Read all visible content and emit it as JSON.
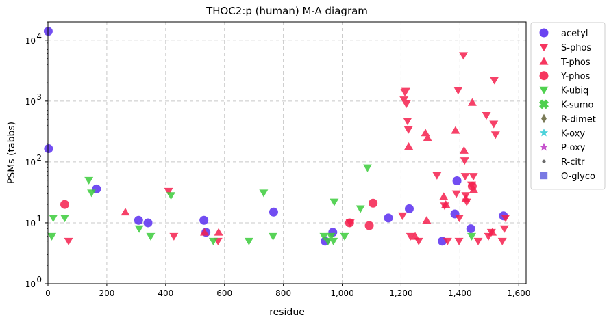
{
  "chart_data": {
    "type": "scatter",
    "title": "THOC2:p (human) M-A diagram",
    "xlabel": "residue",
    "ylabel": "PSMs (tabbs)",
    "x_scale": "linear",
    "y_scale": "log",
    "xlim": [
      0,
      1625
    ],
    "ylim": [
      1,
      20000
    ],
    "x_ticks": [
      {
        "value": 0,
        "label": "0"
      },
      {
        "value": 200,
        "label": "200"
      },
      {
        "value": 400,
        "label": "400"
      },
      {
        "value": 600,
        "label": "600"
      },
      {
        "value": 800,
        "label": "800"
      },
      {
        "value": 1000,
        "label": "1,000"
      },
      {
        "value": 1200,
        "label": "1,200"
      },
      {
        "value": 1400,
        "label": "1,400"
      },
      {
        "value": 1600,
        "label": "1,600"
      }
    ],
    "y_ticks": [
      {
        "value": 1,
        "base": "10",
        "exp": "0"
      },
      {
        "value": 10,
        "base": "10",
        "exp": "1"
      },
      {
        "value": 100,
        "base": "10",
        "exp": "2"
      },
      {
        "value": 1000,
        "base": "10",
        "exp": "3"
      },
      {
        "value": 10000,
        "base": "10",
        "exp": "4"
      }
    ],
    "grid": true,
    "legend_position": "outside-right",
    "series": [
      {
        "name": "acetyl",
        "marker": "circle",
        "color": "#5a2ff0",
        "points": [
          [
            1,
            14000
          ],
          [
            2,
            165
          ],
          [
            165,
            36
          ],
          [
            308,
            11
          ],
          [
            340,
            10
          ],
          [
            530,
            11
          ],
          [
            537,
            7
          ],
          [
            767,
            15
          ],
          [
            942,
            5
          ],
          [
            968,
            7
          ],
          [
            1157,
            12
          ],
          [
            1228,
            17
          ],
          [
            1340,
            5
          ],
          [
            1383,
            14
          ],
          [
            1390,
            49
          ],
          [
            1437,
            8
          ],
          [
            1548,
            13
          ]
        ]
      },
      {
        "name": "S-phos",
        "marker": "triangle-down",
        "color": "#f5204e",
        "points": [
          [
            70,
            5
          ],
          [
            410,
            33
          ],
          [
            428,
            6
          ],
          [
            578,
            5
          ],
          [
            1027,
            10
          ],
          [
            1205,
            13
          ],
          [
            1210,
            1050
          ],
          [
            1213,
            1400
          ],
          [
            1216,
            1450
          ],
          [
            1218,
            900
          ],
          [
            1222,
            470
          ],
          [
            1225,
            340
          ],
          [
            1232,
            6
          ],
          [
            1260,
            5
          ],
          [
            1322,
            60
          ],
          [
            1348,
            19
          ],
          [
            1358,
            5
          ],
          [
            1388,
            30
          ],
          [
            1394,
            1500
          ],
          [
            1397,
            5
          ],
          [
            1398,
            12
          ],
          [
            1412,
            5600
          ],
          [
            1416,
            105
          ],
          [
            1418,
            58
          ],
          [
            1420,
            28
          ],
          [
            1423,
            22
          ],
          [
            1440,
            42
          ],
          [
            1446,
            58
          ],
          [
            1462,
            5
          ],
          [
            1490,
            580
          ],
          [
            1497,
            6
          ],
          [
            1507,
            7
          ],
          [
            1515,
            420
          ],
          [
            1517,
            2200
          ],
          [
            1521,
            280
          ],
          [
            1544,
            5
          ],
          [
            1551,
            8
          ],
          [
            1555,
            12
          ]
        ]
      },
      {
        "name": "T-phos",
        "marker": "triangle-up",
        "color": "#f5204e",
        "points": [
          [
            263,
            15
          ],
          [
            532,
            7
          ],
          [
            580,
            7
          ],
          [
            1226,
            180
          ],
          [
            1248,
            6
          ],
          [
            1283,
            300
          ],
          [
            1287,
            11
          ],
          [
            1290,
            250
          ],
          [
            1345,
            27
          ],
          [
            1352,
            20
          ],
          [
            1385,
            330
          ],
          [
            1414,
            155
          ],
          [
            1420,
            25
          ],
          [
            1442,
            950
          ],
          [
            1447,
            35
          ],
          [
            1510,
            7
          ]
        ]
      },
      {
        "name": "Y-phos",
        "marker": "circle",
        "color": "#f5204e",
        "points": [
          [
            57,
            20
          ],
          [
            1025,
            10
          ],
          [
            1092,
            9
          ],
          [
            1105,
            21
          ],
          [
            1442,
            40
          ]
        ]
      },
      {
        "name": "K-ubiq",
        "marker": "triangle-down",
        "color": "#3ccc3c",
        "points": [
          [
            13,
            6
          ],
          [
            18,
            12
          ],
          [
            57,
            12
          ],
          [
            139,
            50
          ],
          [
            148,
            31
          ],
          [
            310,
            8
          ],
          [
            349,
            6
          ],
          [
            418,
            28
          ],
          [
            562,
            5
          ],
          [
            683,
            5
          ],
          [
            733,
            31
          ],
          [
            765,
            6
          ],
          [
            938,
            6
          ],
          [
            952,
            5
          ],
          [
            962,
            6
          ],
          [
            970,
            5
          ],
          [
            973,
            22
          ],
          [
            1008,
            6
          ],
          [
            1062,
            17
          ],
          [
            1086,
            80
          ],
          [
            1440,
            6
          ]
        ]
      },
      {
        "name": "K-sumo",
        "marker": "cross",
        "color": "#3ccc3c",
        "points": []
      },
      {
        "name": "R-dimet",
        "marker": "diamond",
        "color": "#6b6b45",
        "points": []
      },
      {
        "name": "K-oxy",
        "marker": "star",
        "color": "#39cdd6",
        "points": []
      },
      {
        "name": "P-oxy",
        "marker": "star",
        "color": "#c040c8",
        "points": []
      },
      {
        "name": "R-citr",
        "marker": "dot",
        "color": "#5a5a5a",
        "points": []
      },
      {
        "name": "O-glyco",
        "marker": "square",
        "color": "#6a6ae0",
        "points": []
      }
    ]
  }
}
